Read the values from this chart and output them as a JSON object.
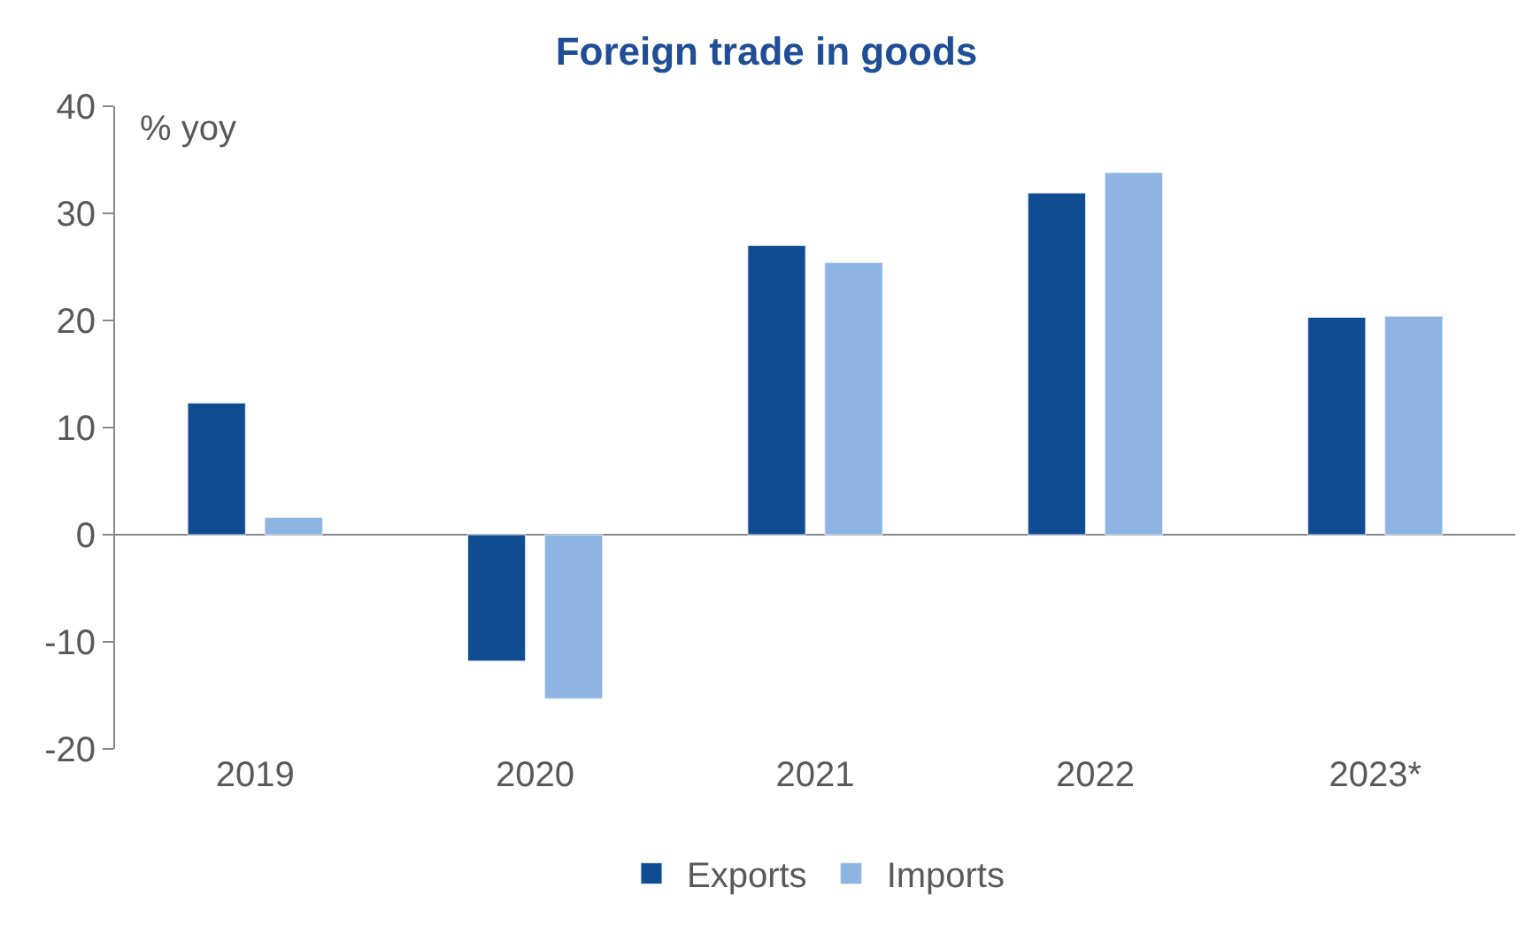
{
  "chart_data": {
    "type": "bar",
    "title": "Foreign trade in goods",
    "ylabel": "% yoy",
    "categories": [
      "2019",
      "2020",
      "2021",
      "2022",
      "2023*"
    ],
    "series": [
      {
        "name": "Exports",
        "color": "#0f4c92",
        "values": [
          12.3,
          -11.8,
          27.0,
          31.9,
          20.3
        ]
      },
      {
        "name": "Imports",
        "color": "#8db4e2",
        "values": [
          1.6,
          -15.3,
          25.4,
          33.8,
          20.4
        ]
      }
    ],
    "ylim": [
      -20,
      40
    ],
    "yticks": [
      -20,
      -10,
      0,
      10,
      20,
      30,
      40
    ],
    "legend": "bottom"
  }
}
